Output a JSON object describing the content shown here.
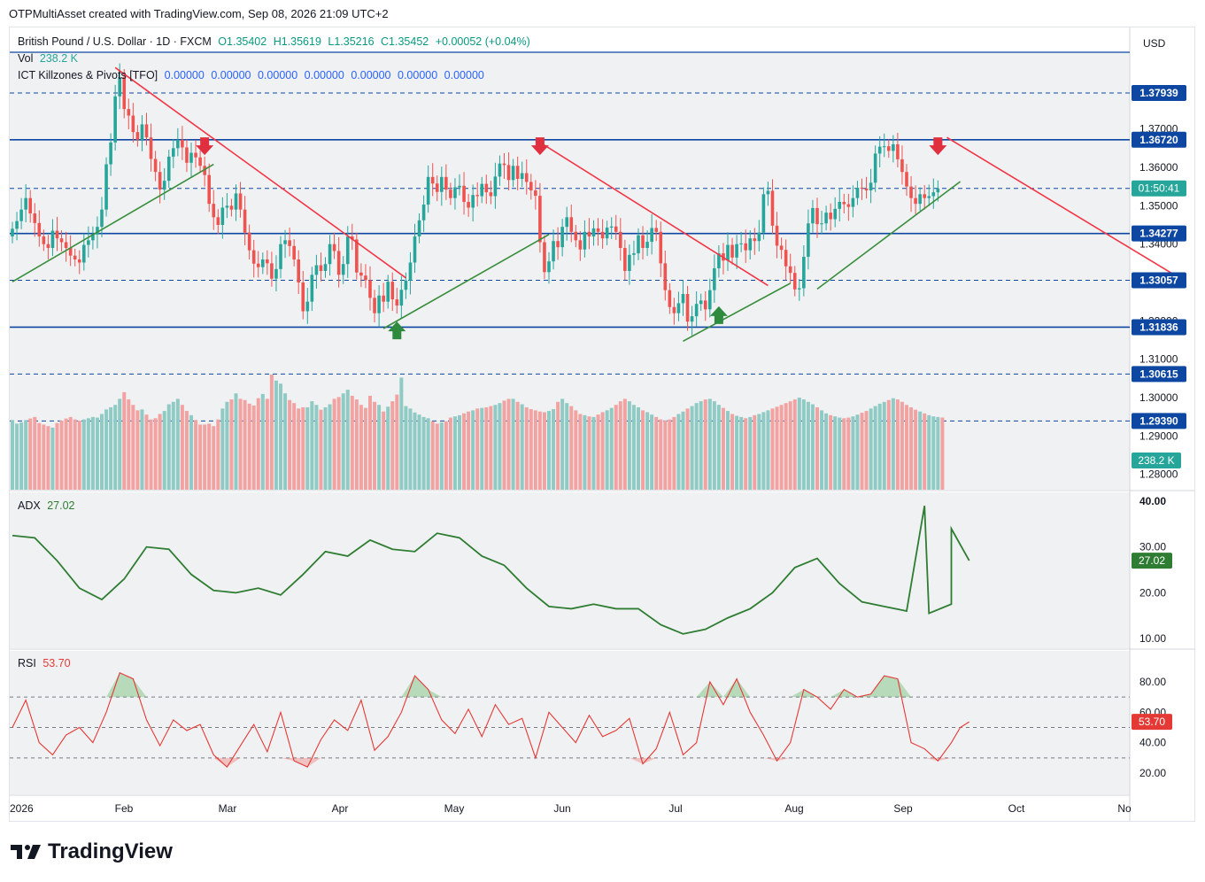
{
  "header": {
    "title": "OTPMultiAsset created with TradingView.com, Sep 08, 2026 21:09 UTC+2"
  },
  "symbol": {
    "name": "British Pound / U.S. Dollar · 1D · FXCM",
    "open": "O1.35402",
    "high": "H1.35619",
    "low": "L1.35216",
    "close": "C1.35452",
    "change": "+0.00052 (+0.04%)"
  },
  "currency": "USD",
  "indicators": {
    "vol_label": "Vol",
    "vol_value": "238.2 K",
    "ict_label": "ICT Killzones & Pivots [TFO]",
    "ict_values": [
      "0.00000",
      "0.00000",
      "0.00000",
      "0.00000",
      "0.00000",
      "0.00000",
      "0.00000"
    ],
    "adx_label": "ADX",
    "adx_value": "27.02",
    "rsi_label": "RSI",
    "rsi_value": "53.70"
  },
  "badges": {
    "countdown": "01:50:41",
    "last_price": "1.35452",
    "volume": "238.2 K",
    "adx": "27.02",
    "rsi": "53.70"
  },
  "colors": {
    "up": "#26a69a",
    "down": "#ef5350",
    "level": "#0d47a1",
    "trend_down": "#f23645",
    "trend_up": "#388e3c",
    "adx": "#2e7d32",
    "rsi": "#e53935"
  },
  "brand": "TradingView",
  "chart_data": [
    {
      "type": "candlestick",
      "title": "British Pound / U.S. Dollar · 1D · FXCM",
      "x_ticks": [
        "2026",
        "Feb",
        "Mar",
        "Apr",
        "May",
        "Jun",
        "Jul",
        "Aug",
        "Sep",
        "Oct",
        "No"
      ],
      "y_ticks": [
        "1.37000",
        "1.36000",
        "1.35000",
        "1.34000",
        "1.33000",
        "1.32000",
        "1.31000",
        "1.30000",
        "1.29000",
        "1.28000"
      ],
      "ylim": [
        1.276,
        1.39
      ],
      "price_levels": [
        {
          "value": 1.37939,
          "label": "1.37939",
          "style": "dashed"
        },
        {
          "value": 1.3672,
          "label": "1.36720",
          "style": "solid"
        },
        {
          "value": 1.35452,
          "label": "",
          "style": "dashed"
        },
        {
          "value": 1.34277,
          "label": "1.34277",
          "style": "solid"
        },
        {
          "value": 1.33057,
          "label": "1.33057",
          "style": "dashed"
        },
        {
          "value": 1.31836,
          "label": "1.31836",
          "style": "solid"
        },
        {
          "value": 1.30615,
          "label": "1.30615",
          "style": "dashed"
        },
        {
          "value": 1.2939,
          "label": "1.29390",
          "style": "dashed"
        }
      ],
      "trendlines": [
        {
          "color": "down",
          "from": [
            23,
            1.386
          ],
          "to": [
            88,
            1.3312
          ]
        },
        {
          "color": "down",
          "from": [
            118,
            1.3665
          ],
          "to": [
            169,
            1.3292
          ]
        },
        {
          "color": "down",
          "from": [
            209,
            1.3678
          ],
          "to": [
            262,
            1.3305
          ]
        },
        {
          "color": "up",
          "from": [
            0,
            1.3302
          ],
          "to": [
            45,
            1.3608
          ]
        },
        {
          "color": "up",
          "from": [
            83,
            1.318
          ],
          "to": [
            120,
            1.3425
          ]
        },
        {
          "color": "up",
          "from": [
            150,
            1.3147
          ],
          "to": [
            174,
            1.3298
          ]
        },
        {
          "color": "up",
          "from": [
            180,
            1.3283
          ],
          "to": [
            212,
            1.3563
          ]
        }
      ],
      "signals": [
        {
          "i": 43,
          "dir": "down"
        },
        {
          "i": 118,
          "dir": "down"
        },
        {
          "i": 207,
          "dir": "down"
        },
        {
          "i": 86,
          "dir": "up"
        },
        {
          "i": 158,
          "dir": "up"
        }
      ],
      "candle_step_days": 1,
      "start_date": "2026-01-01",
      "close": [
        1.344,
        1.346,
        1.349,
        1.352,
        1.348,
        1.3455,
        1.342,
        1.34,
        1.339,
        1.3435,
        1.3415,
        1.3405,
        1.339,
        1.337,
        1.336,
        1.3352,
        1.3398,
        1.341,
        1.3425,
        1.3445,
        1.349,
        1.3608,
        1.3665,
        1.3785,
        1.3835,
        1.3752,
        1.3735,
        1.3692,
        1.3672,
        1.3712,
        1.3678,
        1.3622,
        1.3588,
        1.3542,
        1.3565,
        1.3628,
        1.365,
        1.3672,
        1.3652,
        1.3612,
        1.3638,
        1.3626,
        1.3604,
        1.358,
        1.3505,
        1.347,
        1.345,
        1.3495,
        1.35,
        1.349,
        1.3532,
        1.349,
        1.343,
        1.3384,
        1.3349,
        1.334,
        1.336,
        1.335,
        1.331,
        1.3335,
        1.34,
        1.341,
        1.3395,
        1.336,
        1.33,
        1.3225,
        1.325,
        1.332,
        1.3345,
        1.333,
        1.3348,
        1.34,
        1.3382,
        1.332,
        1.3348,
        1.342,
        1.3412,
        1.3326,
        1.3318,
        1.3306,
        1.326,
        1.322,
        1.3266,
        1.325,
        1.3302,
        1.3256,
        1.324,
        1.3281,
        1.3305,
        1.3352,
        1.342,
        1.3462,
        1.3503,
        1.3575,
        1.3558,
        1.3536,
        1.3575,
        1.3542,
        1.352,
        1.3548,
        1.3552,
        1.351,
        1.3495,
        1.3528,
        1.3525,
        1.3557,
        1.3535,
        1.3525,
        1.3576,
        1.361,
        1.3606,
        1.3567,
        1.3604,
        1.357,
        1.3585,
        1.3562,
        1.354,
        1.3526,
        1.3405,
        1.3327,
        1.3355,
        1.3408,
        1.3392,
        1.3445,
        1.347,
        1.3432,
        1.341,
        1.3386,
        1.3432,
        1.342,
        1.3441,
        1.3432,
        1.3415,
        1.3443,
        1.3446,
        1.3432,
        1.339,
        1.333,
        1.3372,
        1.3376,
        1.3423,
        1.339,
        1.3406,
        1.3442,
        1.3432,
        1.335,
        1.328,
        1.3236,
        1.322,
        1.3246,
        1.327,
        1.3198,
        1.3212,
        1.3244,
        1.3253,
        1.323,
        1.328,
        1.3337,
        1.3376,
        1.3357,
        1.3398,
        1.3365,
        1.34,
        1.3402,
        1.3384,
        1.3415,
        1.3408,
        1.343,
        1.353,
        1.3539,
        1.3448,
        1.3396,
        1.3385,
        1.3342,
        1.3325,
        1.3282,
        1.3285,
        1.3367,
        1.3454,
        1.3494,
        1.3452,
        1.3454,
        1.3482,
        1.3465,
        1.3492,
        1.351,
        1.3504,
        1.3497,
        1.352,
        1.3547,
        1.3545,
        1.354,
        1.356,
        1.3636,
        1.3654,
        1.3655,
        1.3643,
        1.366,
        1.3621,
        1.3588,
        1.355,
        1.352,
        1.3505,
        1.353,
        1.352,
        1.3525,
        1.3535,
        1.3545
      ],
      "volume_k": [
        230,
        218,
        222,
        230,
        235,
        240,
        220,
        215,
        210,
        205,
        220,
        228,
        235,
        240,
        232,
        228,
        232,
        236,
        240,
        238,
        250,
        265,
        272,
        280,
        300,
        322,
        298,
        280,
        262,
        265,
        248,
        232,
        236,
        250,
        260,
        282,
        290,
        300,
        280,
        260,
        246,
        230,
        215,
        215,
        218,
        210,
        232,
        268,
        290,
        298,
        318,
        300,
        296,
        284,
        278,
        302,
        316,
        300,
        380,
        360,
        350,
        318,
        296,
        286,
        268,
        272,
        272,
        292,
        280,
        264,
        272,
        282,
        300,
        306,
        318,
        330,
        310,
        298,
        280,
        270,
        310,
        290,
        280,
        258,
        274,
        292,
        314,
        370,
        276,
        268,
        255,
        248,
        240,
        236,
        226,
        218,
        222,
        226,
        238,
        242,
        246,
        252,
        258,
        262,
        268,
        270,
        272,
        276,
        280,
        286,
        294,
        300,
        300,
        290,
        282,
        272,
        266,
        262,
        258,
        256,
        260,
        266,
        290,
        300,
        286,
        276,
        262,
        250,
        246,
        242,
        240,
        248,
        256,
        262,
        270,
        280,
        292,
        300,
        292,
        280,
        272,
        262,
        256,
        248,
        240,
        232,
        228,
        232,
        240,
        250,
        258,
        268,
        276,
        286,
        292,
        298,
        300,
        292,
        280,
        270,
        260,
        250,
        244,
        240,
        236,
        240,
        246,
        250,
        256,
        262,
        268,
        274,
        280,
        286,
        292,
        298,
        304,
        298,
        290,
        282,
        272,
        262,
        252,
        246,
        242,
        238,
        236,
        238,
        242,
        248,
        254,
        260,
        268,
        276,
        284,
        290,
        296,
        302,
        298,
        290,
        280,
        272,
        264,
        258,
        252,
        246,
        242,
        240,
        238.2
      ],
      "volume_colors": "matches candle direction"
    },
    {
      "type": "line",
      "title": "ADX",
      "y_ticks": [
        "40.00",
        "30.00",
        "20.00",
        "10.00"
      ],
      "ylim": [
        8.5,
        41
      ],
      "x": [
        0,
        5,
        10,
        15,
        20,
        25,
        30,
        35,
        40,
        45,
        50,
        55,
        60,
        65,
        70,
        75,
        80,
        85,
        90,
        95,
        100,
        105,
        110,
        115,
        120,
        125,
        130,
        135,
        140,
        145,
        150,
        155,
        160,
        165,
        170,
        175,
        180,
        185,
        190,
        195,
        200,
        205,
        210,
        214
      ],
      "values": [
        32.5,
        32,
        27,
        21,
        18.5,
        23,
        30,
        29.5,
        24,
        20.5,
        20,
        21,
        19.5,
        24,
        29,
        28,
        31.5,
        29.5,
        29,
        33,
        32,
        28,
        26,
        21,
        17,
        16.5,
        17.5,
        16.5,
        16.5,
        13,
        11,
        12,
        14.5,
        16.5,
        20,
        25.5,
        27.5,
        22,
        18,
        17,
        16,
        15.5,
        17.5,
        27.02
      ],
      "peaks": [
        [
          204,
          39
        ],
        [
          210,
          34
        ]
      ]
    },
    {
      "type": "line",
      "title": "RSI",
      "y_ticks": [
        "80.00",
        "60.00",
        "40.00",
        "20.00"
      ],
      "ylim": [
        14,
        96
      ],
      "bands": [
        70,
        50,
        30
      ],
      "x": [
        0,
        3,
        6,
        9,
        12,
        15,
        18,
        21,
        24,
        27,
        30,
        33,
        36,
        39,
        42,
        45,
        48,
        51,
        54,
        57,
        60,
        63,
        66,
        69,
        72,
        75,
        78,
        81,
        84,
        87,
        90,
        93,
        96,
        99,
        102,
        105,
        108,
        111,
        114,
        117,
        120,
        123,
        126,
        129,
        132,
        135,
        138,
        141,
        144,
        147,
        150,
        153,
        156,
        159,
        162,
        165,
        168,
        171,
        174,
        177,
        180,
        183,
        186,
        189,
        192,
        195,
        198,
        201,
        204,
        207,
        210,
        212,
        214
      ],
      "values": [
        50,
        68,
        40,
        32,
        45,
        50,
        40,
        60,
        86,
        82,
        55,
        38,
        55,
        48,
        52,
        32,
        24,
        38,
        52,
        34,
        60,
        28,
        24,
        42,
        55,
        48,
        68,
        35,
        44,
        60,
        84,
        75,
        55,
        46,
        62,
        44,
        65,
        52,
        56,
        30,
        60,
        50,
        40,
        58,
        44,
        48,
        56,
        26,
        36,
        60,
        32,
        40,
        80,
        65,
        82,
        60,
        45,
        28,
        40,
        75,
        70,
        62,
        75,
        70,
        72,
        84,
        82,
        40,
        36,
        28,
        40,
        50,
        53.7
      ]
    }
  ]
}
